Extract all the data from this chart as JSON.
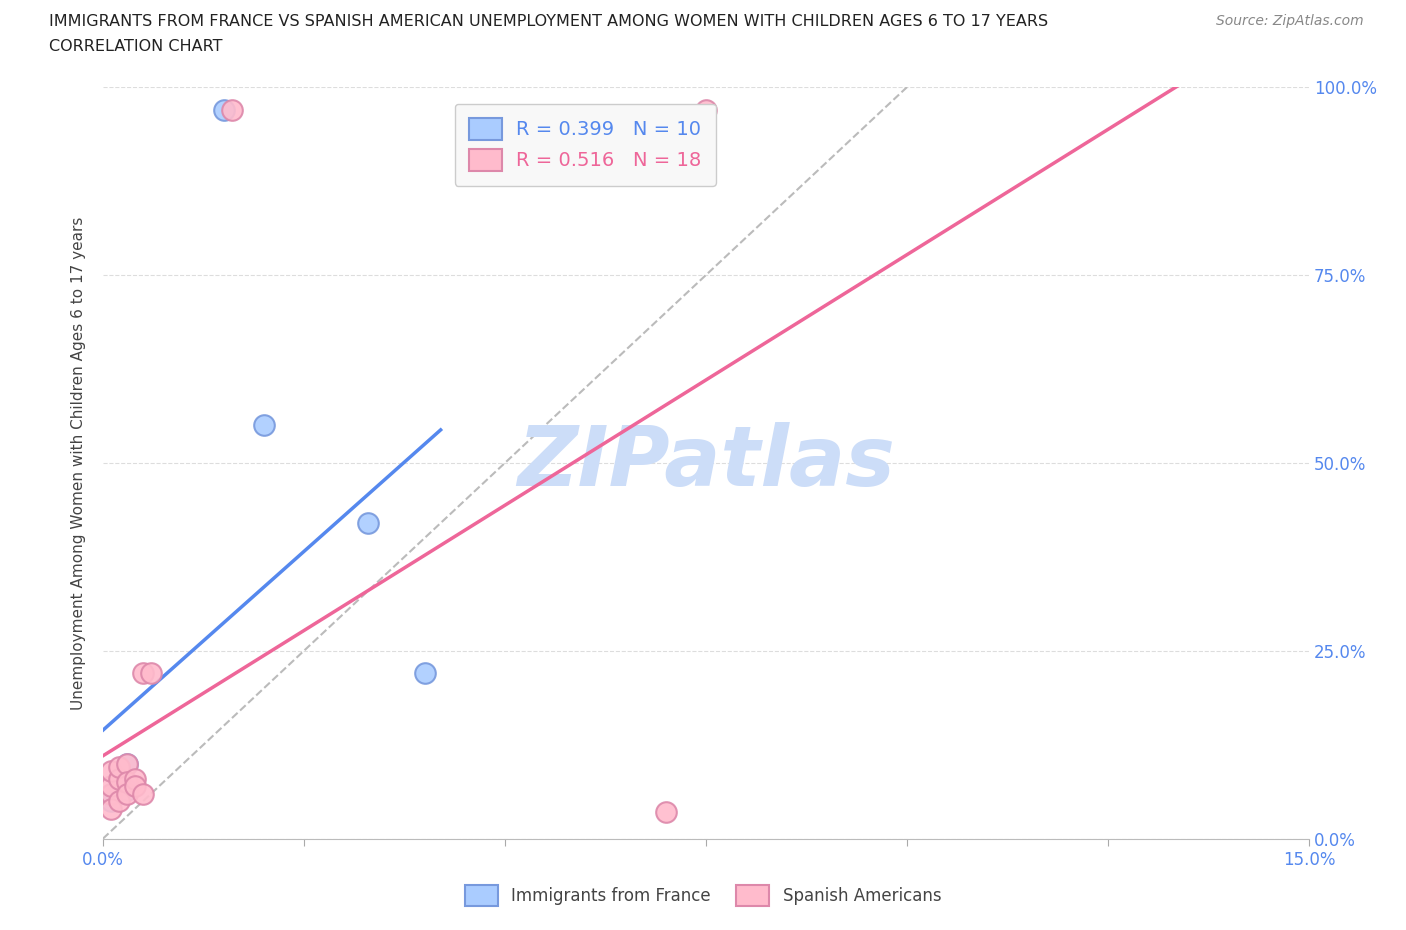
{
  "title_line1": "IMMIGRANTS FROM FRANCE VS SPANISH AMERICAN UNEMPLOYMENT AMONG WOMEN WITH CHILDREN AGES 6 TO 17 YEARS",
  "title_line2": "CORRELATION CHART",
  "source": "Source: ZipAtlas.com",
  "ylabel": "Unemployment Among Women with Children Ages 6 to 17 years",
  "xlim": [
    0.0,
    0.15
  ],
  "ylim": [
    0.0,
    1.0
  ],
  "xticks": [
    0.0,
    0.025,
    0.05,
    0.075,
    0.1,
    0.125,
    0.15
  ],
  "xticklabels": [
    "0.0%",
    "",
    "",
    "",
    "",
    "",
    "15.0%"
  ],
  "yticks": [
    0.0,
    0.25,
    0.5,
    0.75,
    1.0
  ],
  "yticklabels": [
    "0.0%",
    "25.0%",
    "50.0%",
    "75.0%",
    "100.0%"
  ],
  "blue_R": 0.399,
  "blue_N": 10,
  "pink_R": 0.516,
  "pink_N": 18,
  "blue_points": [
    [
      0.001,
      0.05
    ],
    [
      0.001,
      0.06
    ],
    [
      0.002,
      0.07
    ],
    [
      0.002,
      0.08
    ],
    [
      0.003,
      0.065
    ],
    [
      0.003,
      0.1
    ],
    [
      0.015,
      0.97
    ],
    [
      0.033,
      0.42
    ],
    [
      0.04,
      0.22
    ],
    [
      0.02,
      0.55
    ]
  ],
  "pink_points": [
    [
      0.001,
      0.06
    ],
    [
      0.001,
      0.07
    ],
    [
      0.001,
      0.09
    ],
    [
      0.001,
      0.04
    ],
    [
      0.002,
      0.05
    ],
    [
      0.002,
      0.08
    ],
    [
      0.002,
      0.095
    ],
    [
      0.003,
      0.1
    ],
    [
      0.003,
      0.075
    ],
    [
      0.003,
      0.06
    ],
    [
      0.004,
      0.08
    ],
    [
      0.004,
      0.07
    ],
    [
      0.005,
      0.06
    ],
    [
      0.016,
      0.97
    ],
    [
      0.005,
      0.22
    ],
    [
      0.006,
      0.22
    ],
    [
      0.075,
      0.97
    ],
    [
      0.07,
      0.035
    ]
  ],
  "blue_line_color": "#5588ee",
  "pink_line_color": "#ee6699",
  "blue_dot_facecolor": "#aaccff",
  "pink_dot_facecolor": "#ffbbcc",
  "blue_dot_edgecolor": "#7799dd",
  "pink_dot_edgecolor": "#dd88aa",
  "gray_line_color": "#bbbbbb",
  "watermark_text": "ZIPatlas",
  "watermark_color": "#ccddf8",
  "background_color": "#ffffff",
  "grid_color": "#dddddd",
  "legend_box_color": "#f8f8f8",
  "title_color": "#222222",
  "axis_label_color": "#444444",
  "tick_label_color": "#5588ee"
}
